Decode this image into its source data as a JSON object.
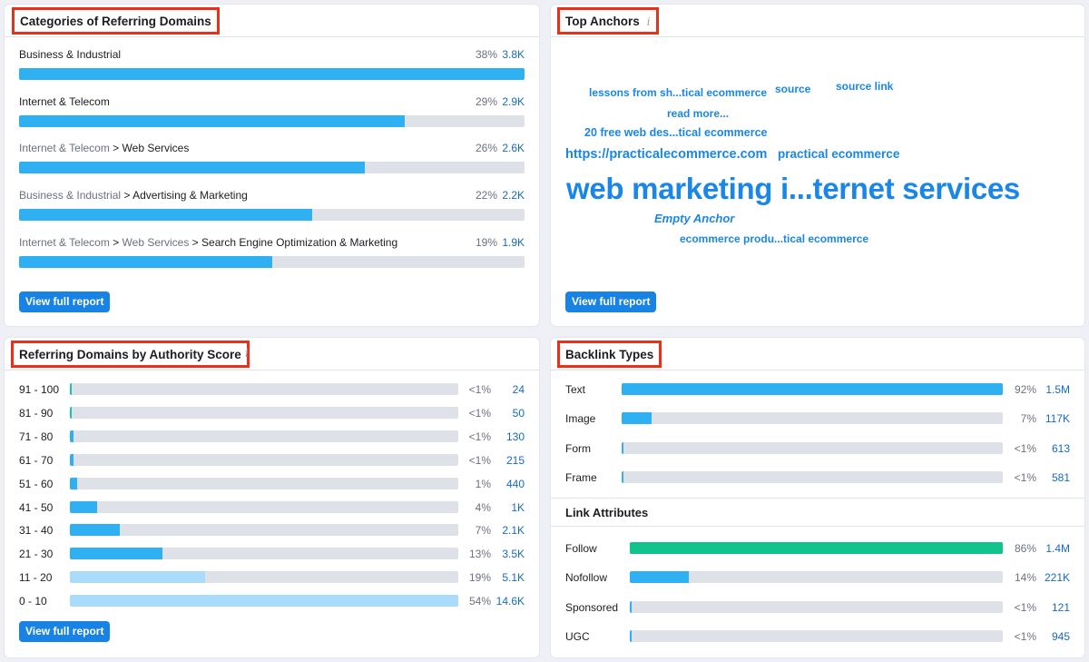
{
  "colors": {
    "accent": "#1883e4",
    "bar_blue": "#2fb0f2",
    "bar_light_blue": "#a9dcfb",
    "bar_teal": "#16c4b3",
    "bar_green": "#12c48b",
    "track": "#dfe1e9",
    "highlight_box": "#e8311b"
  },
  "categories": {
    "title": "Categories of Referring Domains",
    "button": "View full report",
    "rows": [
      {
        "parts": [
          "Business & Industrial"
        ],
        "pct": "38%",
        "count": "3.8K",
        "share": 1.0
      },
      {
        "parts": [
          "Internet & Telecom"
        ],
        "pct": "29%",
        "count": "2.9K",
        "share": 0.763
      },
      {
        "parts": [
          "Internet & Telecom",
          "Web Services"
        ],
        "pct": "26%",
        "count": "2.6K",
        "share": 0.684
      },
      {
        "parts": [
          "Business & Industrial",
          "Advertising & Marketing"
        ],
        "pct": "22%",
        "count": "2.2K",
        "share": 0.579
      },
      {
        "parts": [
          "Internet & Telecom",
          "Web Services",
          "Search Engine Optimization & Marketing"
        ],
        "pct": "19%",
        "count": "1.9K",
        "share": 0.5
      }
    ]
  },
  "anchors": {
    "title": "Top Anchors",
    "info": "i",
    "button": "View full report",
    "words": [
      {
        "text": "lessons from sh...tical ecommerce"
      },
      {
        "text": "source"
      },
      {
        "text": "source link"
      },
      {
        "text": "read more..."
      },
      {
        "text": "20 free web des...tical ecommerce"
      },
      {
        "text": "https://practicalecommerce.com"
      },
      {
        "text": "practical ecommerce"
      },
      {
        "text": "web marketing i...ternet services"
      },
      {
        "text": "Empty Anchor"
      },
      {
        "text": "ecommerce produ...tical ecommerce"
      }
    ]
  },
  "authority": {
    "title": "Referring Domains by Authority Score",
    "info": "i",
    "button": "View full report",
    "rows": [
      {
        "range": "91 - 100",
        "pct": "<1%",
        "count": "24",
        "share": 0.002,
        "color": "teal"
      },
      {
        "range": "81 - 90",
        "pct": "<1%",
        "count": "50",
        "share": 0.003,
        "color": "teal"
      },
      {
        "range": "71 - 80",
        "pct": "<1%",
        "count": "130",
        "share": 0.009,
        "color": "blue"
      },
      {
        "range": "61 - 70",
        "pct": "<1%",
        "count": "215",
        "share": 0.01,
        "color": "blue"
      },
      {
        "range": "51 - 60",
        "pct": "1%",
        "count": "440",
        "share": 0.019,
        "color": "blue"
      },
      {
        "range": "41 - 50",
        "pct": "4%",
        "count": "1K",
        "share": 0.069,
        "color": "blue"
      },
      {
        "range": "31 - 40",
        "pct": "7%",
        "count": "2.1K",
        "share": 0.129,
        "color": "blue"
      },
      {
        "range": "21 - 30",
        "pct": "13%",
        "count": "3.5K",
        "share": 0.239,
        "color": "blue"
      },
      {
        "range": "11 - 20",
        "pct": "19%",
        "count": "5.1K",
        "share": 0.349,
        "color": "light"
      },
      {
        "range": "0 - 10",
        "pct": "54%",
        "count": "14.6K",
        "share": 1.0,
        "color": "light"
      }
    ]
  },
  "backlinks": {
    "title": "Backlink Types",
    "rows": [
      {
        "label": "Text",
        "pct": "92%",
        "count": "1.5M",
        "share": 1.0
      },
      {
        "label": "Image",
        "pct": "7%",
        "count": "117K",
        "share": 0.078
      },
      {
        "label": "Form",
        "pct": "<1%",
        "count": "613",
        "share": 0.002
      },
      {
        "label": "Frame",
        "pct": "<1%",
        "count": "581",
        "share": 0.002
      }
    ]
  },
  "link_attributes": {
    "title": "Link Attributes",
    "rows": [
      {
        "label": "Follow",
        "pct": "86%",
        "count": "1.4M",
        "share": 1.0,
        "color": "green"
      },
      {
        "label": "Nofollow",
        "pct": "14%",
        "count": "221K",
        "share": 0.158,
        "color": "blue"
      },
      {
        "label": "Sponsored",
        "pct": "<1%",
        "count": "121",
        "share": 0.002,
        "color": "blue"
      },
      {
        "label": "UGC",
        "pct": "<1%",
        "count": "945",
        "share": 0.002,
        "color": "blue"
      }
    ]
  }
}
